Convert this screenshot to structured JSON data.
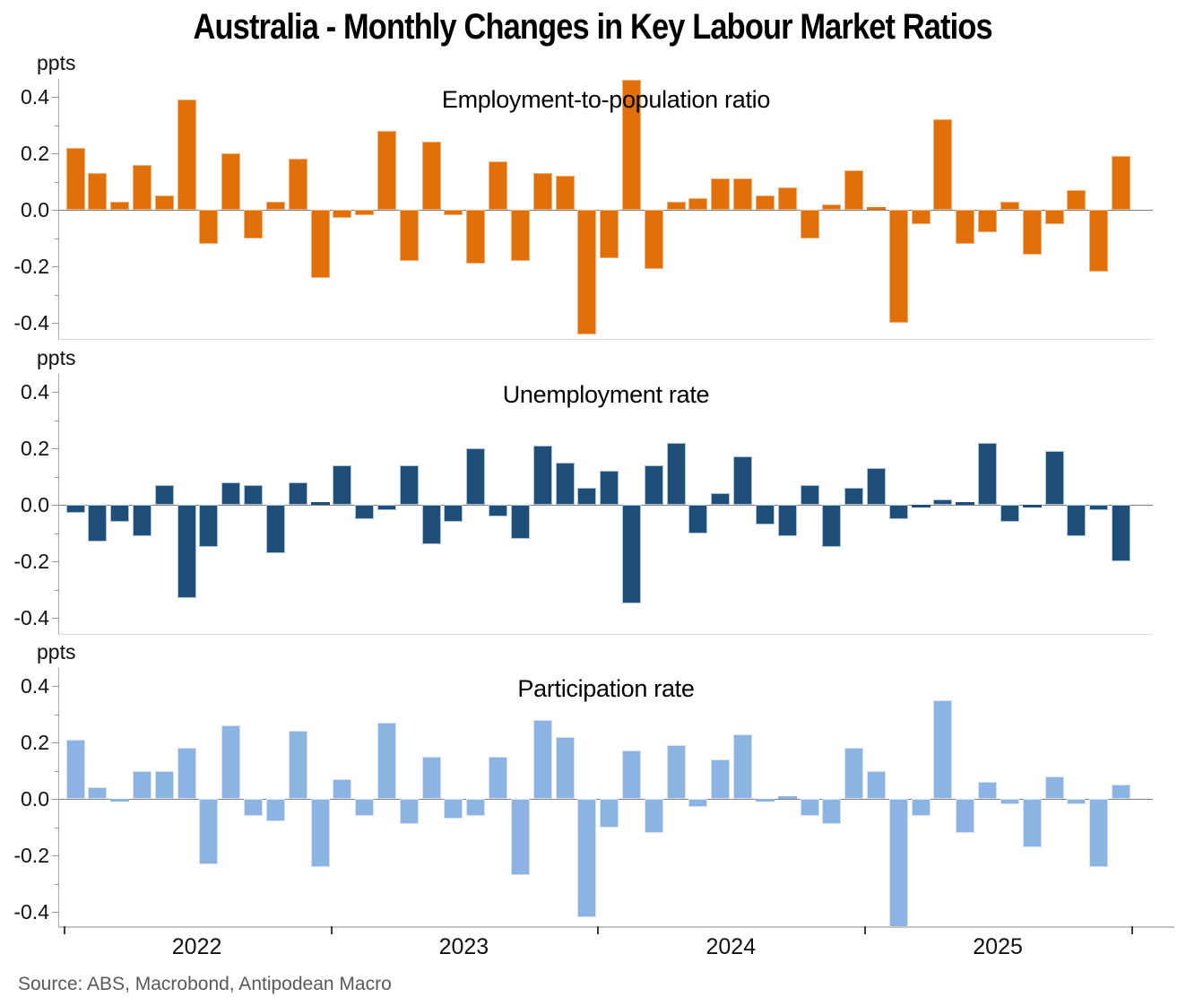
{
  "title": "Australia - Monthly Changes in Key Labour Market Ratios",
  "source": "Source: ABS, Macrobond, Antipodean Macro",
  "y_axis": {
    "unit_label": "ppts",
    "tick_labels": [
      "0.4",
      "0.2",
      "0.0",
      "-0.2",
      "-0.4"
    ],
    "ylim": [
      -0.46,
      0.46
    ]
  },
  "x_axis": {
    "year_labels": [
      "2022",
      "2023",
      "2024",
      "2025"
    ]
  },
  "chart_data": {
    "type": "bar",
    "title": "Australia - Monthly Changes in Key Labour Market Ratios",
    "ylabel": "ppts",
    "ylim": [
      -0.46,
      0.46
    ],
    "grid": false,
    "legend_position": "none",
    "x": [
      "2022-01",
      "2022-02",
      "2022-03",
      "2022-04",
      "2022-05",
      "2022-06",
      "2022-07",
      "2022-08",
      "2022-09",
      "2022-10",
      "2022-11",
      "2022-12",
      "2023-01",
      "2023-02",
      "2023-03",
      "2023-04",
      "2023-05",
      "2023-06",
      "2023-07",
      "2023-08",
      "2023-09",
      "2023-10",
      "2023-11",
      "2023-12",
      "2024-01",
      "2024-02",
      "2024-03",
      "2024-04",
      "2024-05",
      "2024-06",
      "2024-07",
      "2024-08",
      "2024-09",
      "2024-10",
      "2024-11",
      "2024-12",
      "2025-01",
      "2025-02",
      "2025-03",
      "2025-04",
      "2025-05",
      "2025-06",
      "2025-07",
      "2025-08",
      "2025-09",
      "2025-10",
      "2025-11",
      "2025-12"
    ],
    "panels": [
      {
        "title": "Employment-to-population ratio",
        "color": "#e2700a",
        "border_color": "#f3b074",
        "values": [
          0.22,
          0.13,
          0.03,
          0.16,
          0.05,
          0.39,
          -0.12,
          0.2,
          -0.1,
          0.03,
          0.18,
          -0.24,
          -0.03,
          -0.02,
          0.28,
          -0.18,
          0.24,
          -0.02,
          -0.19,
          0.17,
          -0.18,
          0.13,
          0.12,
          -0.44,
          -0.17,
          0.46,
          -0.21,
          0.03,
          0.04,
          0.11,
          0.11,
          0.05,
          0.08,
          -0.1,
          0.02,
          0.14,
          0.01,
          -0.4,
          -0.05,
          0.32,
          -0.12,
          -0.08,
          0.03,
          -0.16,
          -0.05,
          0.07,
          -0.22,
          0.19
        ]
      },
      {
        "title": "Unemployment rate",
        "color": "#1f4e79",
        "border_color": "#a9c2dd",
        "values": [
          -0.03,
          -0.13,
          -0.06,
          -0.11,
          0.07,
          -0.33,
          -0.15,
          0.08,
          0.07,
          -0.17,
          0.08,
          0.01,
          0.14,
          -0.05,
          -0.02,
          0.14,
          -0.14,
          -0.06,
          0.2,
          -0.04,
          -0.12,
          0.21,
          0.15,
          0.06,
          0.12,
          -0.35,
          0.14,
          0.22,
          -0.1,
          0.04,
          0.17,
          -0.07,
          -0.11,
          0.07,
          -0.15,
          0.06,
          0.13,
          -0.05,
          -0.01,
          0.02,
          0.01,
          0.22,
          -0.06,
          -0.01,
          0.19,
          -0.11,
          -0.02,
          -0.2
        ]
      },
      {
        "title": "Participation rate",
        "color": "#8cb4e3",
        "border_color": "#d4e2f4",
        "values": [
          0.21,
          0.04,
          -0.01,
          0.1,
          0.1,
          0.18,
          -0.23,
          0.26,
          -0.06,
          -0.08,
          0.24,
          -0.24,
          0.07,
          -0.06,
          0.27,
          -0.09,
          0.15,
          -0.07,
          -0.06,
          0.15,
          -0.27,
          0.28,
          0.22,
          -0.42,
          -0.1,
          0.17,
          -0.12,
          0.19,
          -0.03,
          0.14,
          0.23,
          -0.01,
          0.01,
          -0.06,
          -0.09,
          0.18,
          0.1,
          -0.46,
          -0.06,
          0.35,
          -0.12,
          0.06,
          -0.02,
          -0.17,
          0.08,
          -0.02,
          -0.24,
          0.05
        ]
      }
    ]
  }
}
